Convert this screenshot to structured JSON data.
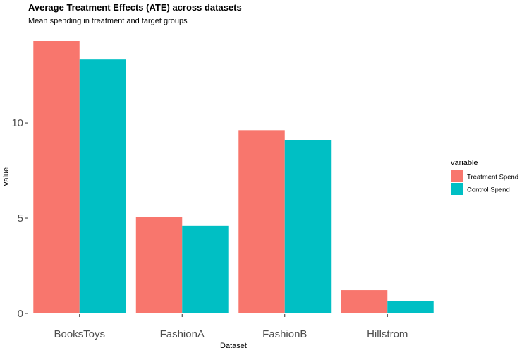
{
  "chart_data": {
    "type": "bar",
    "title": "Average Treatment Effects (ATE) across datasets",
    "subtitle": "Mean spending in treatment and target groups",
    "xlabel": "Dataset",
    "ylabel": "value",
    "categories": [
      "BooksToys",
      "FashionA",
      "FashionB",
      "Hillstrom"
    ],
    "series": [
      {
        "name": "Treatment Spend",
        "color": "#f8766d",
        "values": [
          14.3,
          5.07,
          9.62,
          1.22
        ]
      },
      {
        "name": "Control Spend",
        "color": "#00bfc4",
        "values": [
          13.33,
          4.6,
          9.08,
          0.63
        ]
      }
    ],
    "ylim": [
      0,
      14.3
    ],
    "yticks": [
      0,
      5,
      10
    ],
    "grid": false,
    "legend": {
      "title": "variable",
      "position": "right"
    }
  }
}
